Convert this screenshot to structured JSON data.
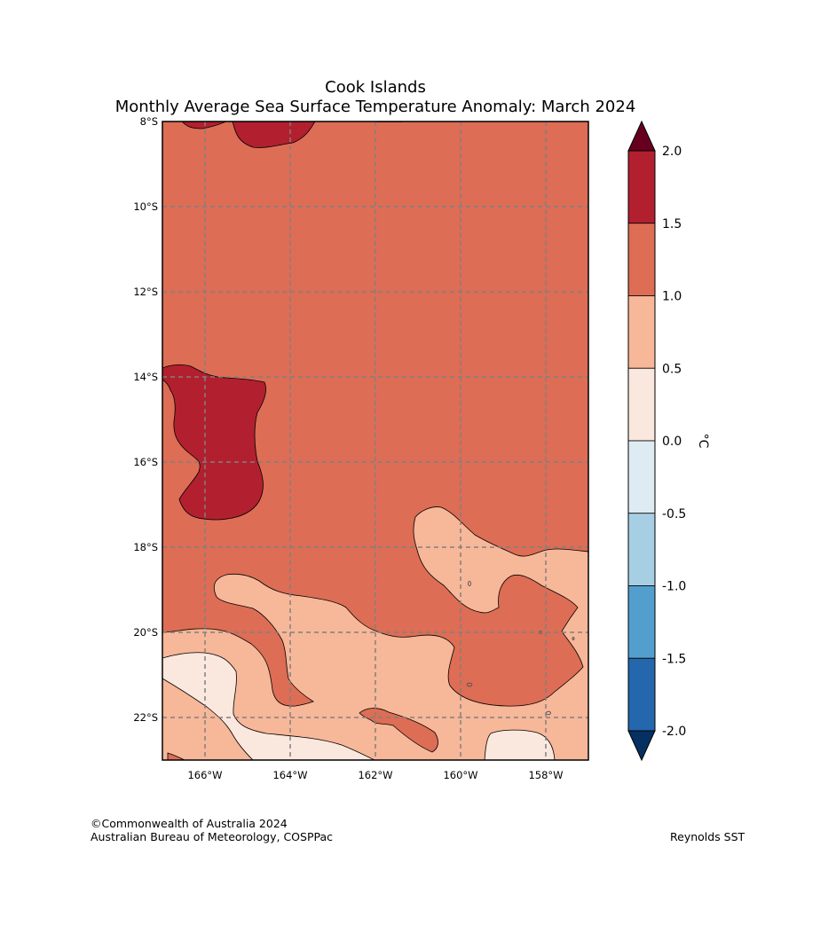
{
  "title": {
    "line1": "Cook Islands",
    "line2": "Monthly Average Sea Surface Temperature Anomaly: March 2024"
  },
  "map": {
    "lon_range": [
      -167,
      -157
    ],
    "lat_range": [
      -23,
      -8
    ],
    "lon_ticks": [
      {
        "value": -166,
        "label": "166°W"
      },
      {
        "value": -164,
        "label": "164°W"
      },
      {
        "value": -162,
        "label": "162°W"
      },
      {
        "value": -160,
        "label": "160°W"
      },
      {
        "value": -158,
        "label": "158°W"
      }
    ],
    "lat_ticks": [
      {
        "value": -8,
        "label": "8°S"
      },
      {
        "value": -10,
        "label": "10°S"
      },
      {
        "value": -12,
        "label": "12°S"
      },
      {
        "value": -14,
        "label": "14°S"
      },
      {
        "value": -16,
        "label": "16°S"
      },
      {
        "value": -18,
        "label": "18°S"
      },
      {
        "value": -20,
        "label": "20°S"
      },
      {
        "value": -22,
        "label": "22°S"
      }
    ],
    "gridlines": true,
    "background_anomaly_band": "1.0 to 1.5"
  },
  "colorbar": {
    "unit": "°C",
    "labels": [
      "2.0",
      "1.5",
      "1.0",
      "0.5",
      "0.0",
      "-0.5",
      "-1.0",
      "-1.5",
      "-2.0"
    ],
    "colors_top_to_bottom": [
      "#b2202f",
      "#dd6d55",
      "#f7b799",
      "#fae8de",
      "#deebf2",
      "#a7cfe4",
      "#529fcd",
      "#2567ad"
    ],
    "extend_max_color": "#67001f",
    "extend_min_color": "#053061"
  },
  "credits": {
    "line1": "©Commonwealth of Australia 2024",
    "line2": "Australian Bureau of Meteorology, COSPPac",
    "source": "Reynolds SST"
  }
}
